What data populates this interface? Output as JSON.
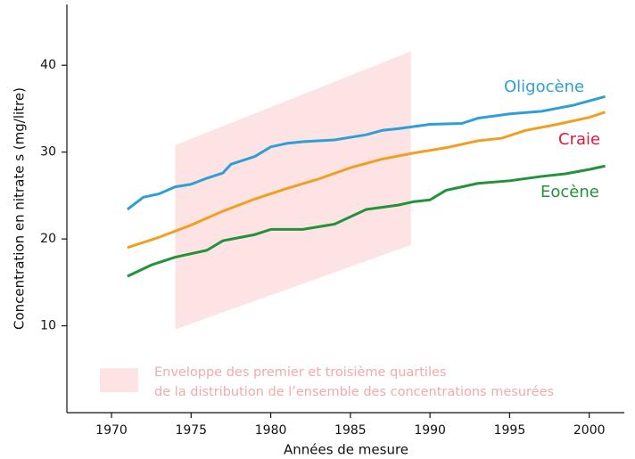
{
  "chart_data": {
    "type": "line",
    "xlabel": "Années de mesure",
    "ylabel": "Concentration en nitrate s (mg/litre)",
    "xlim": [
      1967.2,
      2002.2
    ],
    "ylim": [
      0,
      47
    ],
    "xticks": [
      1970,
      1975,
      1980,
      1985,
      1990,
      1995,
      2000
    ],
    "yticks": [
      10,
      20,
      30,
      40
    ],
    "band": {
      "x": [
        1974,
        1988.8
      ],
      "lower": [
        9.6,
        19.3
      ],
      "upper": [
        30.8,
        41.6
      ],
      "color": "#fde3e3",
      "legend": [
        "Enveloppe  des  premier  et  troisième  quartiles",
        "de la distribution de l’ensemble  des concentrations  mesurées"
      ]
    },
    "series": [
      {
        "name": "Oligocène",
        "color": "#2e9fd6",
        "label_color": "#2e9fd6",
        "x": [
          1971,
          1972,
          1973,
          1974,
          1975,
          1976,
          1977,
          1977.5,
          1979,
          1980,
          1981,
          1982,
          1984,
          1986,
          1987,
          1988,
          1990,
          1992,
          1993,
          1995,
          1997,
          1999,
          2001
        ],
        "values": [
          23.4,
          24.8,
          25.2,
          26,
          26.3,
          27,
          27.6,
          28.6,
          29.5,
          30.6,
          31,
          31.2,
          31.4,
          32,
          32.5,
          32.7,
          33.2,
          33.3,
          33.9,
          34.4,
          34.7,
          35.4,
          36.4
        ]
      },
      {
        "name": "Craie",
        "color": "#f0a020",
        "label_color": "#e0183a",
        "x": [
          1971,
          1973,
          1975,
          1977,
          1979,
          1981,
          1983,
          1985,
          1987,
          1989,
          1991,
          1993,
          1994.5,
          1996,
          1998,
          2000,
          2001
        ],
        "values": [
          19,
          20.2,
          21.6,
          23.2,
          24.6,
          25.8,
          26.9,
          28.2,
          29.2,
          29.9,
          30.5,
          31.3,
          31.6,
          32.5,
          33.2,
          34,
          34.6
        ]
      },
      {
        "name": "Eocène",
        "color": "#22933a",
        "label_color": "#22933a",
        "x": [
          1971,
          1972.5,
          1974,
          1976,
          1977,
          1979,
          1980,
          1982,
          1984,
          1986,
          1988,
          1989,
          1990,
          1991,
          1993,
          1995,
          1997,
          1998.5,
          2000,
          2001
        ],
        "values": [
          15.7,
          17,
          17.9,
          18.7,
          19.8,
          20.5,
          21.1,
          21.1,
          21.7,
          23.4,
          23.9,
          24.3,
          24.5,
          25.6,
          26.4,
          26.7,
          27.2,
          27.5,
          28,
          28.4
        ]
      }
    ]
  }
}
